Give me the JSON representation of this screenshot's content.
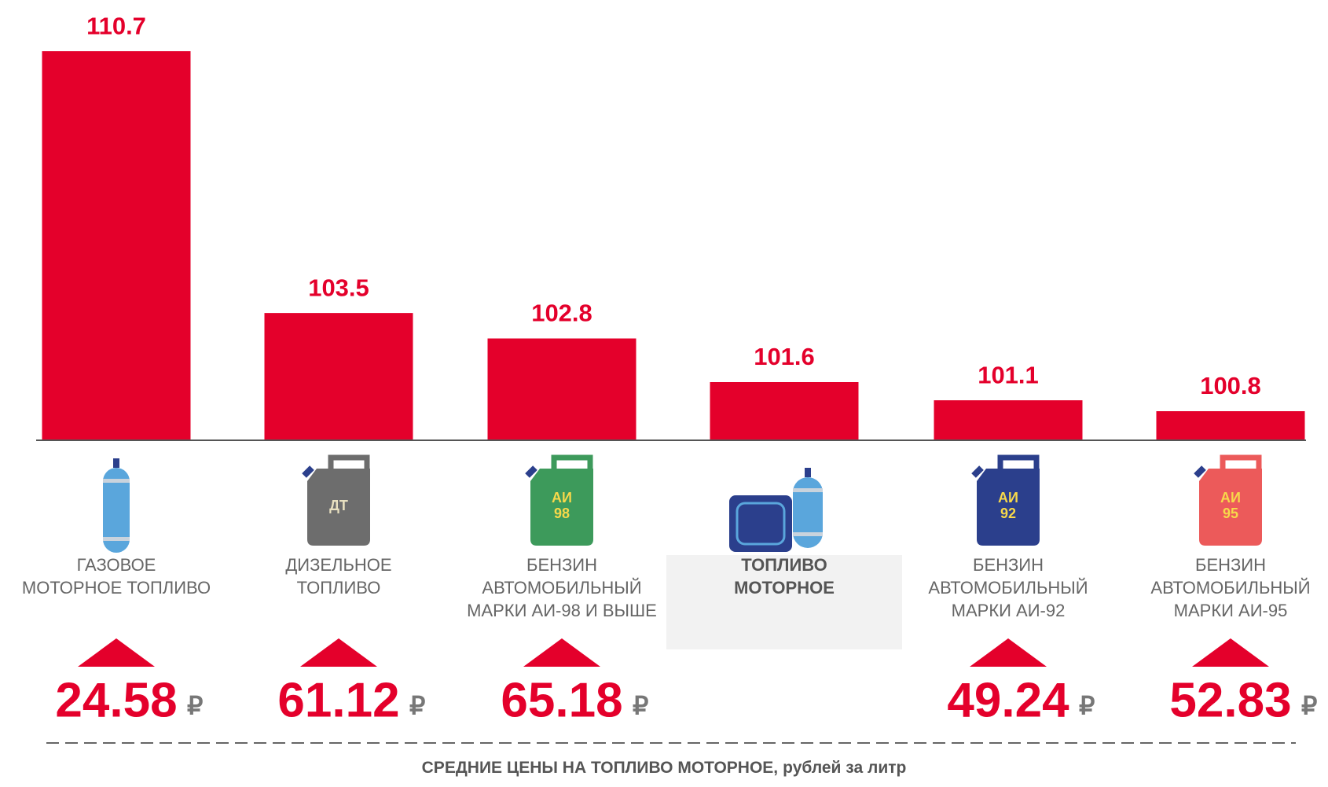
{
  "chart_data": {
    "type": "bar",
    "categories": [
      [
        "ГАЗОВОЕ",
        "МОТОРНОЕ ТОПЛИВО"
      ],
      [
        "ДИЗЕЛЬНОЕ",
        "ТОПЛИВО"
      ],
      [
        "БЕНЗИН",
        "АВТОМОБИЛЬНЫЙ",
        "МАРКИ АИ-98 И ВЫШЕ"
      ],
      [
        "ТОПЛИВО",
        "МОТОРНОЕ"
      ],
      [
        "БЕНЗИН",
        "АВТОМОБИЛЬНЫЙ",
        "МАРКИ АИ-92"
      ],
      [
        "БЕНЗИН",
        "АВТОМОБИЛЬНЫЙ",
        "МАРКИ АИ-95"
      ]
    ],
    "values": [
      110.7,
      103.5,
      102.8,
      101.6,
      101.1,
      100.8
    ],
    "color": "#e4002b",
    "ylim": [
      100,
      112
    ],
    "highlight": 3,
    "icon_labels": [
      null,
      [
        "ДТ"
      ],
      [
        "АИ",
        "98"
      ],
      null,
      [
        "АИ",
        "92"
      ],
      [
        "АИ",
        "95"
      ]
    ],
    "prices": [
      24.58,
      61.12,
      65.18,
      null,
      49.24,
      52.83
    ],
    "price_unit": "₽",
    "caption_bold": "СРЕДНИЕ ЦЕНЫ НА ТОПЛИВО МОТОРНОЕ,",
    "caption_rest": "рублей за литр"
  }
}
